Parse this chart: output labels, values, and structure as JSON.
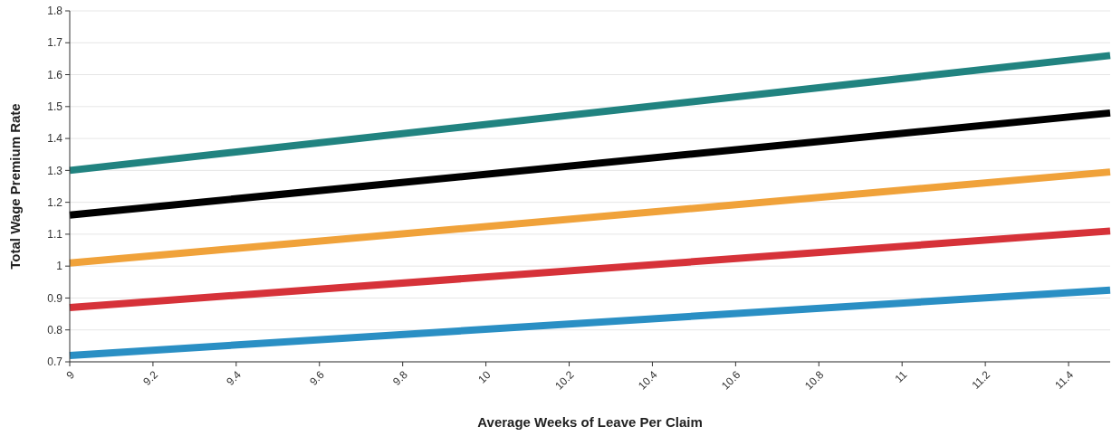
{
  "chart_data": {
    "type": "line",
    "xlabel": "Average Weeks of Leave Per Claim",
    "ylabel": "Total Wage Premium Rate",
    "x": [
      9,
      11.5
    ],
    "series": [
      {
        "color": "#218380",
        "values": [
          1.3,
          1.66
        ]
      },
      {
        "color": "#000000",
        "values": [
          1.16,
          1.48
        ]
      },
      {
        "color": "#f0a23a",
        "values": [
          1.01,
          1.295
        ]
      },
      {
        "color": "#d63239",
        "values": [
          0.87,
          1.11
        ]
      },
      {
        "color": "#2a8fc4",
        "values": [
          0.72,
          0.925
        ]
      }
    ],
    "xlim": [
      9,
      11.5
    ],
    "xticks": [
      9,
      9.2,
      9.4,
      9.6,
      9.8,
      10,
      10.2,
      10.4,
      10.6,
      10.8,
      11,
      11.2,
      11.4
    ],
    "ylim": [
      0.7,
      1.8
    ],
    "yticks": [
      0.7,
      0.8,
      0.9,
      1,
      1.1,
      1.2,
      1.3,
      1.4,
      1.5,
      1.6,
      1.7,
      1.8
    ],
    "grid": "y",
    "marker": "none",
    "line_style": "solid"
  }
}
